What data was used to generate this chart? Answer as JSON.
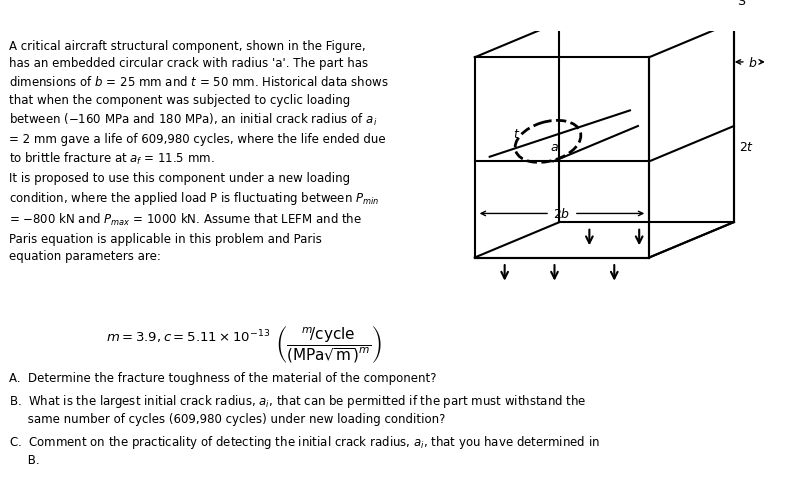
{
  "bg_color": "#ffffff",
  "text_color": "#000000",
  "fig_width": 8.1,
  "fig_height": 4.89,
  "dpi": 100,
  "paragraph_text": "A critical aircraft structural component, shown in the Figure,\nhas an embedded circular crack with radius ‘a’. The part has\ndimensions of b = 25 mm and t = 50 mm. Historical data shows\nthat when the component was subjected to cyclic loading\nbetween (−160 MPa and 180 MPa), an initial crack radius of aᵢ\n= 2 mm gave a life of 609,980 cycles, where the life ended due\nto brittle fracture at aⁱ = 11.5 mm.\nIt is proposed to use this component under a new loading\ncondition, where the applied load P is fluctuating between Pₘᵢⁿ\n= −800 kN and Pₘₐˣ = 1000 kN. Assume that LEFM and the\nParis equation is applicable in this problem and Paris\nequation parameters are:",
  "questions": [
    "A. Determine the fracture toughness of the material of the component?",
    "B. What is the largest initial crack radius, aᵢ, that can be permitted if the part must withstand the\n    same number of cycles (609,980 cycles) under new loading condition?",
    "C. Comment on the practicality of detecting the initial crack radius, aᵢ, that you have determined in\n    B."
  ]
}
